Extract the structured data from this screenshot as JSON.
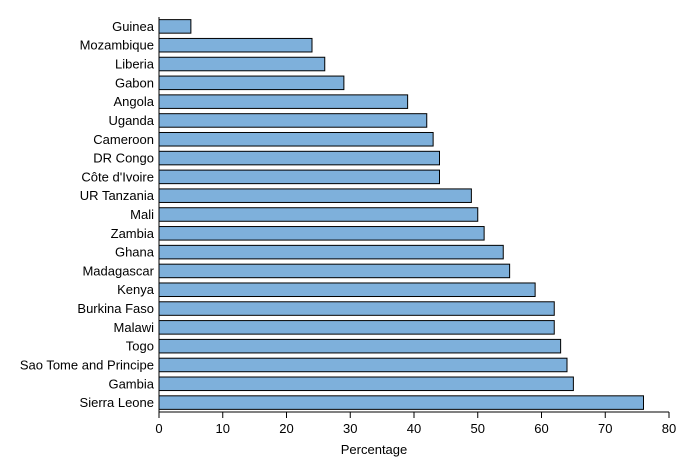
{
  "chart_data": {
    "type": "bar",
    "orientation": "horizontal",
    "title": "",
    "xlabel": "Percentage",
    "ylabel": "",
    "xlim": [
      0,
      80
    ],
    "xticks": [
      0,
      10,
      20,
      30,
      40,
      50,
      60,
      70,
      80
    ],
    "grid": false,
    "bar_color": "#7EB0DB",
    "bar_edge_color": "#000000",
    "categories": [
      "Guinea",
      "Mozambique",
      "Liberia",
      "Gabon",
      "Angola",
      "Uganda",
      "Cameroon",
      "DR Congo",
      "Côte d'Ivoire",
      "UR Tanzania",
      "Mali",
      "Zambia",
      "Ghana",
      "Madagascar",
      "Kenya",
      "Burkina Faso",
      "Malawi",
      "Togo",
      "Sao Tome and Principe",
      "Gambia",
      "Sierra Leone"
    ],
    "values": [
      5,
      24,
      26,
      29,
      39,
      42,
      43,
      44,
      44,
      49,
      50,
      51,
      54,
      55,
      59,
      62,
      62,
      63,
      64,
      65,
      76
    ]
  }
}
